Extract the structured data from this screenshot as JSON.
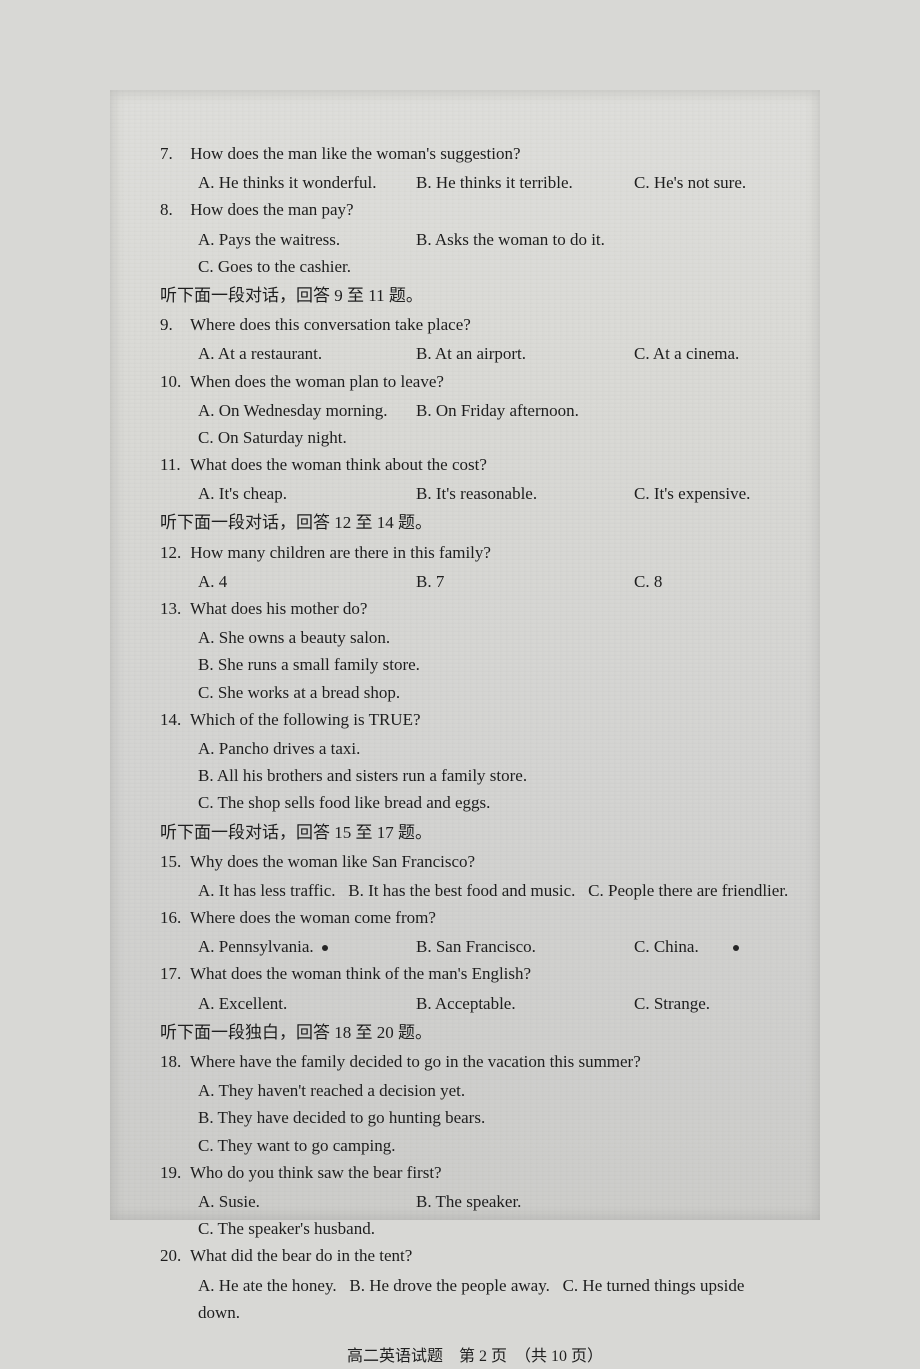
{
  "q7": {
    "num": "7.",
    "text": "How does the man like the woman's suggestion?",
    "A": "A. He thinks it wonderful.",
    "B": "B. He thinks it terrible.",
    "C": "C. He's not sure."
  },
  "q8": {
    "num": "8.",
    "text": "How does the man pay?",
    "A": "A. Pays the waitress.",
    "B": "B. Asks the woman to do it.",
    "C": "C. Goes to the cashier."
  },
  "sec1": "听下面一段对话，回答 9 至 11 题。",
  "q9": {
    "num": "9.",
    "text": "Where does this conversation take place?",
    "A": "A. At a restaurant.",
    "B": "B. At an airport.",
    "C": "C. At a cinema."
  },
  "q10": {
    "num": "10.",
    "text": "When does the woman plan to leave?",
    "A": "A. On Wednesday morning.",
    "B": "B. On Friday afternoon.",
    "C": "C. On Saturday night."
  },
  "q11": {
    "num": "11.",
    "text": "What does the woman think about the cost?",
    "A": "A. It's cheap.",
    "B": "B. It's reasonable.",
    "C": "C. It's expensive."
  },
  "sec2": "听下面一段对话，回答 12 至 14 题。",
  "q12": {
    "num": "12.",
    "text": "How many children are there in this family?",
    "A": "A. 4",
    "B": "B. 7",
    "C": "C. 8"
  },
  "q13": {
    "num": "13.",
    "text": "What does his mother do?",
    "A": "A. She owns a beauty salon.",
    "B": "B. She runs a small family store.",
    "C": "C. She works at a bread shop."
  },
  "q14": {
    "num": "14.",
    "text": "Which of the following is TRUE?",
    "A": "A. Pancho drives a taxi.",
    "B": "B. All his brothers and sisters run a family store.",
    "C": "C. The shop sells food like bread and eggs."
  },
  "sec3": "听下面一段对话，回答 15 至 17 题。",
  "q15": {
    "num": "15.",
    "text": "Why does the woman like San Francisco?",
    "A": "A. It has less traffic.",
    "B": "B. It has the best food and music.",
    "C": "C. People there are friendlier."
  },
  "q16": {
    "num": "16.",
    "text": "Where does the woman come from?",
    "A": "A. Pennsylvania.",
    "B": "B. San Francisco.",
    "C": "C. China."
  },
  "q17": {
    "num": "17.",
    "text": "What does the woman think of the man's English?",
    "A": "A. Excellent.",
    "B": "B. Acceptable.",
    "C": "C. Strange."
  },
  "sec4": "听下面一段独白，回答 18 至 20 题。",
  "q18": {
    "num": "18.",
    "text": "Where have the family decided to go in the vacation this summer?",
    "A": "A. They haven't reached a decision yet.",
    "B": "B. They have decided to go hunting bears.",
    "C": "C. They want to go camping."
  },
  "q19": {
    "num": "19.",
    "text": "Who do you think saw the bear first?",
    "A": "A. Susie.",
    "B": "B. The speaker.",
    "C": "C. The speaker's husband."
  },
  "q20": {
    "num": "20.",
    "text": "What did the bear do in the tent?",
    "A": "A. He ate the honey.",
    "B": "B. He drove the people away.",
    "C": "C. He turned things upside down."
  },
  "footer": "高二英语试题　第 2 页　（共 10 页）"
}
